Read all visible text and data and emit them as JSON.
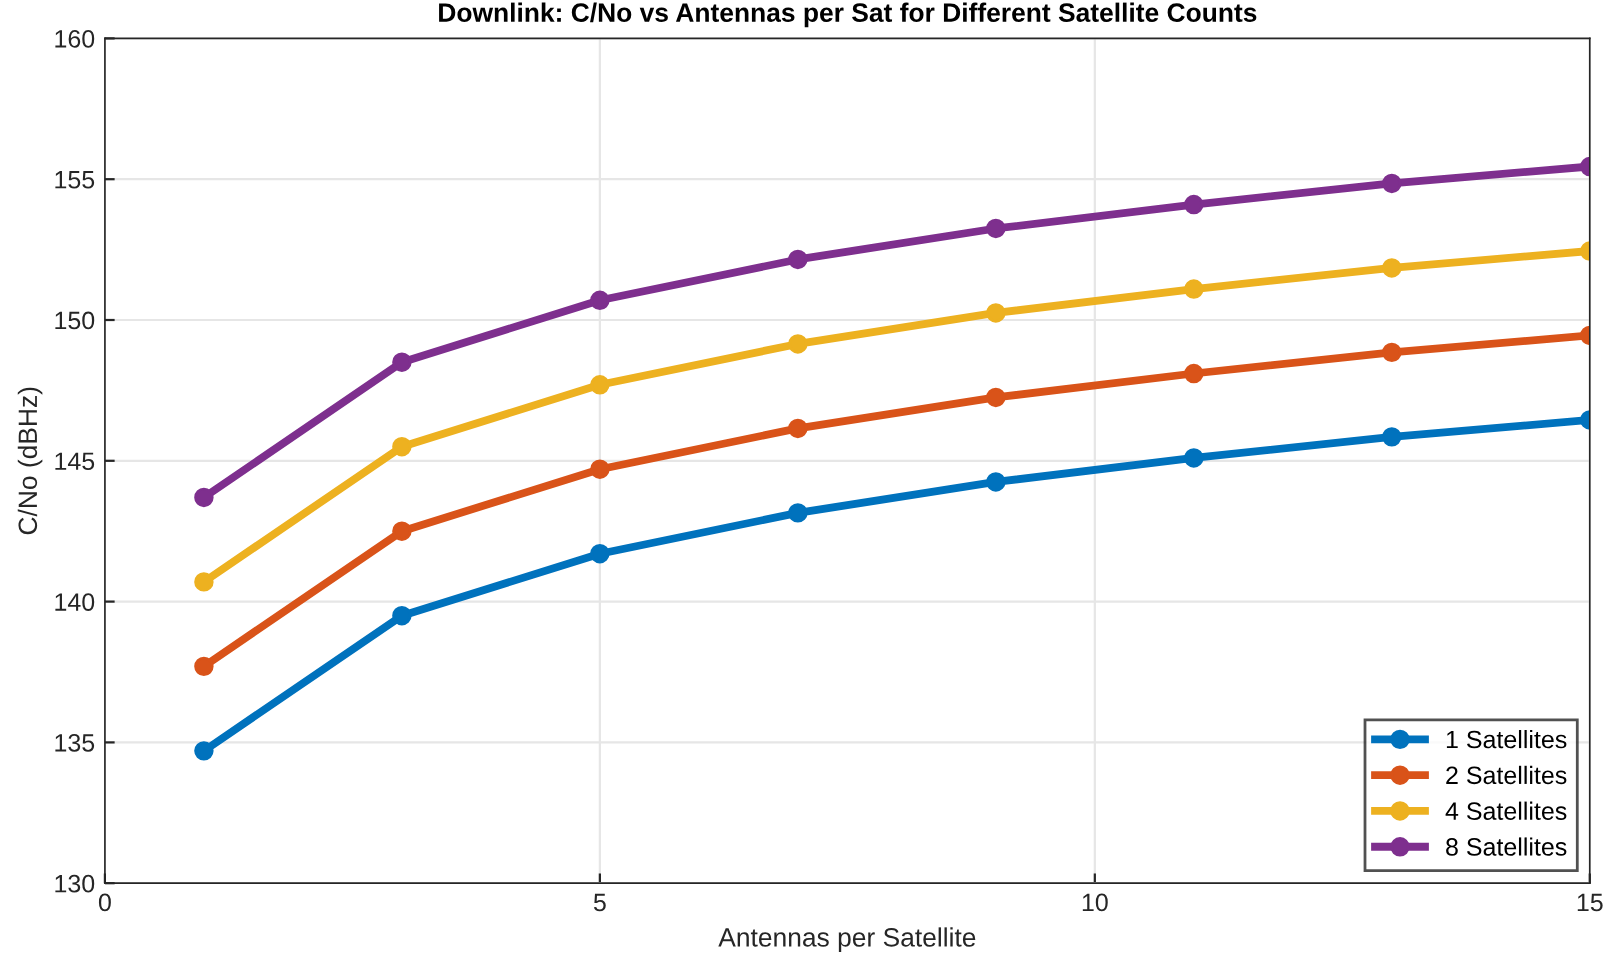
{
  "chart_data": {
    "type": "line",
    "title": "Downlink: C/No vs Antennas per Sat for Different Satellite Counts",
    "xlabel": "Antennas per Satellite",
    "ylabel": "C/No (dBHz)",
    "x": [
      1,
      3,
      5,
      7,
      9,
      11,
      13,
      15
    ],
    "series": [
      {
        "name": "1 Satellites",
        "color": "#0072bd",
        "values": [
          134.7,
          139.5,
          141.7,
          143.15,
          144.25,
          145.1,
          145.85,
          146.45
        ]
      },
      {
        "name": "2 Satellites",
        "color": "#d95319",
        "values": [
          137.7,
          142.5,
          144.7,
          146.15,
          147.25,
          148.1,
          148.85,
          149.45
        ]
      },
      {
        "name": "4 Satellites",
        "color": "#edb120",
        "values": [
          140.7,
          145.5,
          147.7,
          149.15,
          150.25,
          151.1,
          151.85,
          152.45
        ]
      },
      {
        "name": "8 Satellites",
        "color": "#7e2f8e",
        "values": [
          143.7,
          148.5,
          150.7,
          152.15,
          153.25,
          154.1,
          154.85,
          155.45
        ]
      }
    ],
    "xlim": [
      0,
      15
    ],
    "xticks": [
      0,
      5,
      10,
      15
    ],
    "ylim": [
      130,
      160
    ],
    "yticks": [
      130,
      135,
      140,
      145,
      150,
      155,
      160
    ],
    "grid": true,
    "legend": "bottom right",
    "marker": "circle",
    "line_style": "solid"
  }
}
